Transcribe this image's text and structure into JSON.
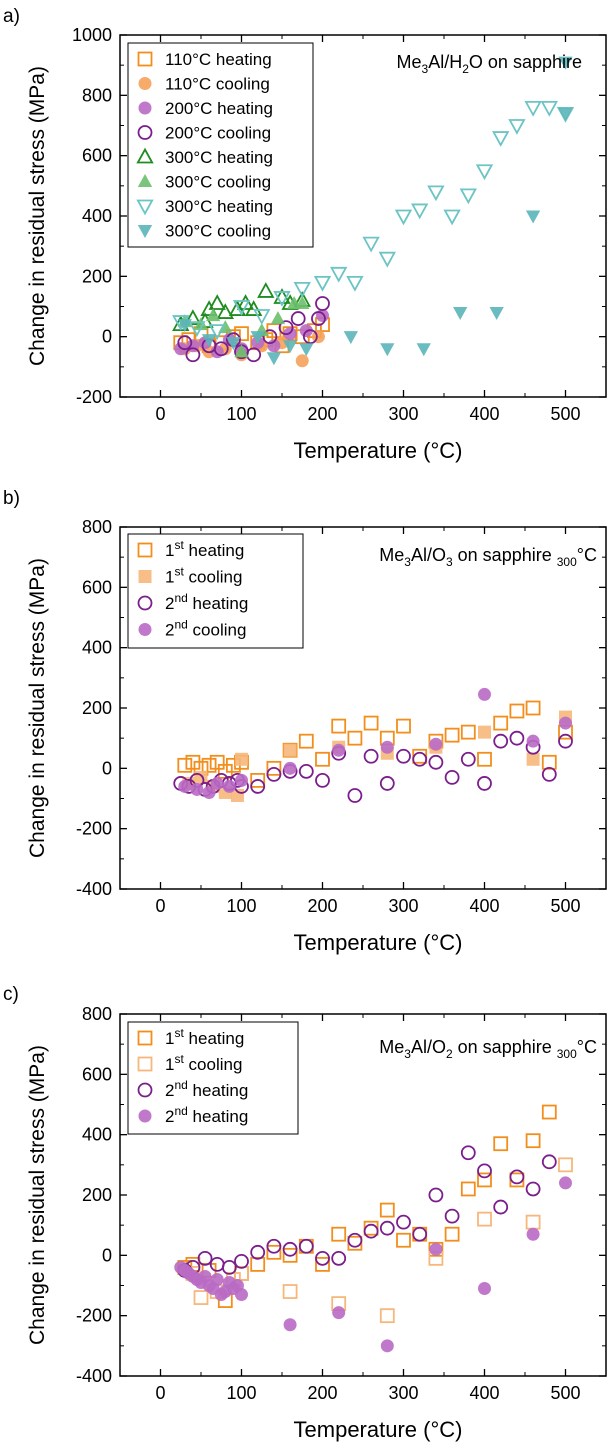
{
  "chart_data": [
    {
      "type": "scatter",
      "panel_label": "a)",
      "annotation": "Me3Al/H2O on sapphire",
      "xlabel": "Temperature (°C)",
      "ylabel": "Change in residual stress (MPa)",
      "xlim": [
        -50,
        550
      ],
      "ylim": [
        -200,
        1000
      ],
      "xticks": [
        0,
        100,
        200,
        300,
        400,
        500
      ],
      "yticks": [
        -200,
        0,
        200,
        400,
        600,
        800,
        1000
      ],
      "legend_position": "top-left",
      "series": [
        {
          "name": "110°C heating",
          "color": "#f28e1c",
          "marker": "square-open",
          "x": [
            25,
            35,
            50,
            60,
            75,
            90,
            100,
            120,
            130,
            140,
            150,
            160,
            175,
            190,
            200
          ],
          "y": [
            -20,
            -10,
            10,
            -30,
            -20,
            0,
            10,
            -20,
            -10,
            20,
            -30,
            10,
            0,
            20,
            40
          ]
        },
        {
          "name": "110°C cooling",
          "color": "#f5a25a",
          "marker": "circle-filled",
          "x": [
            30,
            45,
            60,
            80,
            100,
            125,
            150,
            175,
            195
          ],
          "y": [
            -40,
            -30,
            -50,
            -40,
            -60,
            -30,
            -20,
            -80,
            0
          ]
        },
        {
          "name": "200°C heating",
          "color": "#b96ac4",
          "marker": "circle-filled",
          "x": [
            25,
            40,
            55,
            70,
            85,
            100,
            120,
            140,
            160,
            180,
            200
          ],
          "y": [
            -40,
            -30,
            -20,
            -50,
            -10,
            -40,
            -20,
            -30,
            10,
            20,
            70
          ]
        },
        {
          "name": "200°C cooling",
          "color": "#7a1e8c",
          "marker": "circle-open",
          "x": [
            30,
            40,
            60,
            75,
            90,
            100,
            115,
            135,
            155,
            170,
            185,
            195,
            200
          ],
          "y": [
            -20,
            -60,
            -30,
            -40,
            -10,
            -50,
            -60,
            0,
            30,
            60,
            0,
            60,
            110
          ]
        },
        {
          "name": "300°C heating",
          "color": "#1e8c1e",
          "marker": "triangle-up-open",
          "x": [
            25,
            40,
            55,
            60,
            70,
            80,
            95,
            105,
            115,
            130,
            150,
            160,
            175
          ],
          "y": [
            40,
            60,
            50,
            90,
            110,
            80,
            90,
            110,
            90,
            150,
            130,
            110,
            120
          ]
        },
        {
          "name": "300°C cooling",
          "color": "#6cbf6c",
          "marker": "triangle-up-filled",
          "x": [
            30,
            50,
            65,
            80,
            100,
            125,
            145,
            165,
            175
          ],
          "y": [
            50,
            40,
            70,
            30,
            -50,
            20,
            60,
            110,
            110
          ]
        },
        {
          "name": "300°C heating",
          "color": "#6cc4c4",
          "marker": "triangle-down-open",
          "x": [
            25,
            45,
            70,
            100,
            125,
            150,
            175,
            200,
            220,
            240,
            260,
            280,
            300,
            320,
            340,
            360,
            380,
            400,
            420,
            440,
            460,
            480,
            500
          ],
          "y": [
            50,
            30,
            20,
            100,
            70,
            130,
            160,
            180,
            210,
            180,
            310,
            260,
            400,
            420,
            480,
            400,
            470,
            550,
            660,
            700,
            760,
            760,
            740
          ]
        },
        {
          "name": "300°C cooling",
          "color": "#5bb5b9",
          "marker": "triangle-down-filled",
          "x": [
            30,
            60,
            90,
            120,
            140,
            160,
            180,
            235,
            280,
            325,
            370,
            415,
            460,
            500,
            500
          ],
          "y": [
            40,
            -10,
            -20,
            0,
            -70,
            -30,
            -40,
            0,
            -40,
            -40,
            80,
            80,
            400,
            740,
            910
          ]
        }
      ]
    },
    {
      "type": "scatter",
      "panel_label": "b)",
      "annotation": "Me3Al/O3 on sapphire 300°C",
      "xlabel": "Temperature (°C)",
      "ylabel": "Change in residual stress (MPa)",
      "xlim": [
        -50,
        550
      ],
      "ylim": [
        -400,
        800
      ],
      "xticks": [
        0,
        100,
        200,
        300,
        400,
        500
      ],
      "yticks": [
        -400,
        -200,
        0,
        200,
        400,
        600,
        800
      ],
      "legend_position": "top-left",
      "series": [
        {
          "name": "1st heating",
          "color": "#f28e1c",
          "marker": "square-open",
          "x": [
            30,
            40,
            50,
            60,
            70,
            80,
            90,
            100,
            120,
            140,
            160,
            180,
            200,
            220,
            240,
            260,
            280,
            300,
            320,
            340,
            360,
            380,
            400,
            420,
            440,
            460,
            480,
            500
          ],
          "y": [
            10,
            20,
            0,
            10,
            20,
            -10,
            10,
            20,
            -40,
            0,
            60,
            90,
            30,
            140,
            100,
            150,
            100,
            140,
            40,
            90,
            110,
            120,
            30,
            150,
            190,
            200,
            20,
            120
          ]
        },
        {
          "name": "1st cooling",
          "color": "#f7b77a",
          "marker": "square-filled",
          "x": [
            35,
            50,
            65,
            80,
            95,
            100,
            160,
            220,
            280,
            340,
            400,
            460,
            500
          ],
          "y": [
            -50,
            -30,
            -60,
            -80,
            -90,
            30,
            60,
            70,
            50,
            70,
            120,
            30,
            170
          ]
        },
        {
          "name": "2nd heating",
          "color": "#7a1e8c",
          "marker": "circle-open",
          "x": [
            25,
            35,
            45,
            55,
            65,
            75,
            85,
            95,
            100,
            120,
            140,
            160,
            180,
            200,
            220,
            240,
            260,
            280,
            300,
            320,
            340,
            360,
            380,
            400,
            420,
            440,
            460,
            480,
            500
          ],
          "y": [
            -50,
            -60,
            -40,
            -70,
            -60,
            -40,
            -50,
            -40,
            -60,
            -60,
            -20,
            -10,
            -10,
            -40,
            50,
            -90,
            40,
            -50,
            40,
            30,
            20,
            -30,
            30,
            -50,
            90,
            100,
            70,
            -20,
            90
          ]
        },
        {
          "name": "2nd cooling",
          "color": "#b96ac4",
          "marker": "circle-filled",
          "x": [
            30,
            45,
            60,
            70,
            85,
            100,
            160,
            220,
            280,
            340,
            400,
            460,
            500
          ],
          "y": [
            -60,
            -70,
            -80,
            -50,
            -60,
            -40,
            0,
            60,
            70,
            80,
            245,
            90,
            150
          ]
        }
      ]
    },
    {
      "type": "scatter",
      "panel_label": "c)",
      "annotation": "Me3Al/O2 on sapphire 300°C",
      "xlabel": "Temperature (°C)",
      "ylabel": "Change in residual stress (MPa)",
      "xlim": [
        -50,
        550
      ],
      "ylim": [
        -400,
        800
      ],
      "xticks": [
        0,
        100,
        200,
        300,
        400,
        500
      ],
      "yticks": [
        -400,
        -200,
        0,
        200,
        400,
        600,
        800
      ],
      "legend_position": "top-left",
      "series": [
        {
          "name": "1st heating",
          "color": "#f28e1c",
          "marker": "square-open",
          "x": [
            30,
            40,
            60,
            80,
            100,
            120,
            140,
            160,
            180,
            200,
            220,
            240,
            260,
            280,
            300,
            320,
            340,
            360,
            380,
            400,
            420,
            440,
            460,
            480
          ],
          "y": [
            -40,
            -30,
            -50,
            -150,
            -60,
            -30,
            10,
            0,
            30,
            -30,
            70,
            40,
            90,
            150,
            50,
            70,
            20,
            70,
            220,
            250,
            370,
            250,
            380,
            475
          ]
        },
        {
          "name": "1st cooling",
          "color": "#f7b77a",
          "marker": "square-open",
          "x": [
            40,
            50,
            70,
            90,
            100,
            160,
            220,
            280,
            340,
            400,
            460,
            500
          ],
          "y": [
            -60,
            -140,
            -120,
            -80,
            -60,
            -120,
            -160,
            -200,
            -10,
            120,
            110,
            300
          ]
        },
        {
          "name": "2nd heating",
          "color": "#7a1e8c",
          "marker": "circle-open",
          "x": [
            30,
            40,
            55,
            70,
            85,
            100,
            120,
            140,
            160,
            180,
            200,
            220,
            240,
            260,
            280,
            300,
            320,
            340,
            360,
            380,
            400,
            420,
            440,
            460,
            480
          ],
          "y": [
            -50,
            -40,
            -10,
            -30,
            -40,
            -20,
            10,
            30,
            20,
            30,
            -10,
            -10,
            50,
            80,
            90,
            110,
            70,
            200,
            130,
            340,
            280,
            160,
            260,
            220,
            310
          ]
        },
        {
          "name": "2nd heating",
          "color": "#b96ac4",
          "marker": "circle-filled",
          "x": [
            25,
            30,
            35,
            40,
            45,
            50,
            55,
            60,
            65,
            70,
            75,
            80,
            85,
            90,
            95,
            100,
            160,
            220,
            280,
            340,
            400,
            460,
            500
          ],
          "y": [
            -40,
            -50,
            -60,
            -70,
            -80,
            -90,
            -70,
            -100,
            -110,
            -80,
            -130,
            -120,
            -90,
            -110,
            -100,
            -130,
            -230,
            -190,
            -300,
            20,
            -110,
            70,
            240
          ]
        }
      ]
    }
  ]
}
